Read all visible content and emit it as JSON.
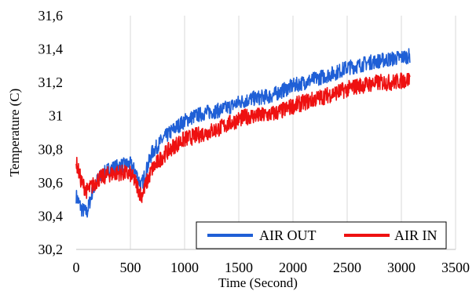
{
  "chart_data": {
    "type": "line",
    "title": "",
    "xlabel": "Time (Second)",
    "ylabel": "Temperature (C)",
    "xlim": [
      0,
      3500
    ],
    "ylim": [
      30.2,
      31.6
    ],
    "x_ticks": [
      0,
      500,
      1000,
      1500,
      2000,
      2500,
      3000,
      3500
    ],
    "x_tick_labels": [
      "0",
      "500",
      "1000",
      "1500",
      "2000",
      "2500",
      "3000",
      "3500"
    ],
    "y_ticks": [
      30.2,
      30.4,
      30.6,
      30.8,
      31.0,
      31.2,
      31.4,
      31.6
    ],
    "y_tick_labels": [
      "30,2",
      "30,4",
      "30,6",
      "30,8",
      "31",
      "31,2",
      "31,4",
      "31,6"
    ],
    "grid": "vertical",
    "legend_position": "bottom-right",
    "series": [
      {
        "name": "AIR OUT",
        "color": "#1f5fd6",
        "noise": 0.045,
        "x": [
          0,
          50,
          100,
          150,
          200,
          300,
          400,
          500,
          550,
          600,
          650,
          700,
          800,
          900,
          1000,
          1100,
          1200,
          1300,
          1400,
          1500,
          1600,
          1700,
          1800,
          1900,
          2000,
          2100,
          2200,
          2300,
          2400,
          2500,
          2600,
          2700,
          2800,
          2900,
          3000,
          3080
        ],
        "y": [
          30.52,
          30.44,
          30.42,
          30.55,
          30.62,
          30.68,
          30.7,
          30.71,
          30.66,
          30.58,
          30.68,
          30.78,
          30.86,
          30.92,
          30.97,
          31.0,
          31.02,
          31.03,
          31.05,
          31.08,
          31.1,
          31.11,
          31.12,
          31.15,
          31.18,
          31.2,
          31.22,
          31.24,
          31.26,
          31.29,
          31.3,
          31.32,
          31.33,
          31.34,
          31.35,
          31.36
        ]
      },
      {
        "name": "AIR IN",
        "color": "#ee1111",
        "noise": 0.05,
        "x": [
          0,
          50,
          100,
          150,
          200,
          300,
          400,
          500,
          550,
          600,
          650,
          700,
          800,
          900,
          1000,
          1100,
          1200,
          1300,
          1400,
          1500,
          1600,
          1700,
          1800,
          1900,
          2000,
          2100,
          2200,
          2300,
          2400,
          2500,
          2600,
          2700,
          2800,
          2900,
          3000,
          3080
        ],
        "y": [
          30.72,
          30.6,
          30.55,
          30.58,
          30.62,
          30.65,
          30.66,
          30.65,
          30.6,
          30.52,
          30.6,
          30.68,
          30.76,
          30.82,
          30.86,
          30.88,
          30.9,
          30.92,
          30.95,
          30.98,
          31.0,
          31.0,
          31.01,
          31.03,
          31.06,
          31.08,
          31.1,
          31.12,
          31.14,
          31.16,
          31.18,
          31.19,
          31.2,
          31.2,
          31.21,
          31.22
        ]
      }
    ]
  }
}
